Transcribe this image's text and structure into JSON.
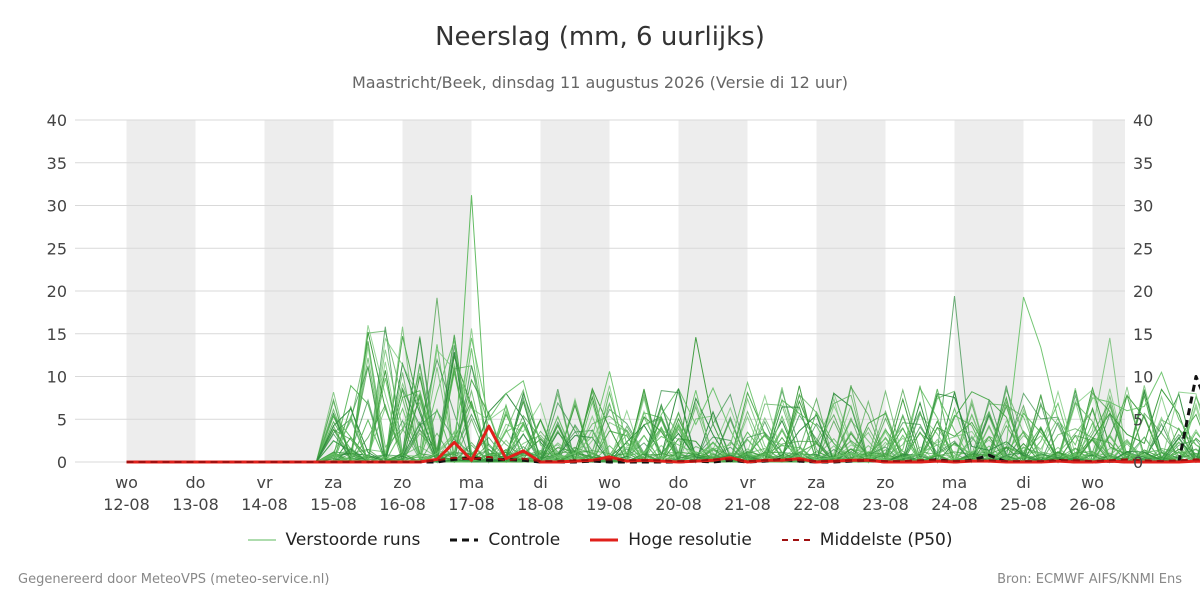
{
  "header": {
    "title": "Neerslag (mm, 6 uurlijks)",
    "subtitle": "Maastricht/Beek, dinsdag 11 augustus 2026 (Versie di 12 uur)"
  },
  "footer": {
    "generated_by": "Gegenereerd door MeteoVPS (meteo-service.nl)",
    "source": "Bron: ECMWF AIFS/KNMI Ens"
  },
  "legend": {
    "items": [
      {
        "label": "Verstoorde runs",
        "color": "#5cb85c",
        "style": "solid-thin"
      },
      {
        "label": "Controle",
        "color": "#111111",
        "style": "dashed"
      },
      {
        "label": "Hoge resolutie",
        "color": "#e0201b",
        "style": "solid-thick"
      },
      {
        "label": "Middelste (P50)",
        "color": "#a01010",
        "style": "dashed"
      }
    ]
  },
  "chart_data": {
    "type": "line",
    "title": "Neerslag (mm, 6 uurlijks)",
    "xlabel": "",
    "ylabel": "",
    "ylim": [
      0,
      40
    ],
    "yticks": [
      0,
      5,
      10,
      15,
      20,
      25,
      30,
      35,
      40
    ],
    "xlim": [
      -0.25,
      15
    ],
    "x_unit": "days from 12-08 00:00 (6-hourly steps)",
    "day_ticks": [
      {
        "day": "wo",
        "date": "12-08"
      },
      {
        "day": "do",
        "date": "13-08"
      },
      {
        "day": "vr",
        "date": "14-08"
      },
      {
        "day": "za",
        "date": "15-08"
      },
      {
        "day": "zo",
        "date": "16-08"
      },
      {
        "day": "ma",
        "date": "17-08"
      },
      {
        "day": "di",
        "date": "18-08"
      },
      {
        "day": "wo",
        "date": "19-08"
      },
      {
        "day": "do",
        "date": "20-08"
      },
      {
        "day": "vr",
        "date": "21-08"
      },
      {
        "day": "za",
        "date": "22-08"
      },
      {
        "day": "zo",
        "date": "23-08"
      },
      {
        "day": "ma",
        "date": "24-08"
      },
      {
        "day": "di",
        "date": "25-08"
      },
      {
        "day": "wo",
        "date": "26-08"
      }
    ],
    "shaded_days": [
      "13-08",
      "15-08",
      "17-08",
      "19-08",
      "21-08",
      "23-08",
      "25-08",
      "27-08"
    ],
    "grid": true,
    "legend_position": "bottom",
    "series": [
      {
        "name": "Controle",
        "color": "#111111",
        "style": "dashed",
        "values": [
          0,
          0,
          0,
          0,
          0,
          0,
          0,
          0,
          0,
          0,
          0,
          0,
          0,
          0,
          0,
          0,
          0,
          0,
          0,
          0.3,
          0.5,
          0.2,
          0.3,
          0.2,
          0,
          0,
          0,
          0.1,
          0,
          0,
          0,
          0,
          0,
          0.1,
          0,
          0.2,
          0,
          0.1,
          0.3,
          0.1,
          0,
          0,
          0.1,
          0.2,
          0,
          0,
          0,
          0.3,
          0,
          0.2,
          0.8,
          0,
          0,
          0,
          0.2,
          0,
          0,
          0.1,
          0,
          0,
          0,
          0,
          10,
          5,
          2,
          1.8,
          3
        ]
      },
      {
        "name": "Hoge resolutie",
        "color": "#e0201b",
        "style": "solid-thick",
        "values": [
          0,
          0,
          0,
          0,
          0,
          0,
          0,
          0,
          0,
          0,
          0,
          0,
          0,
          0,
          0,
          0,
          0,
          0,
          0.3,
          2.3,
          0.2,
          4.2,
          0.4,
          1.3,
          0,
          0,
          0.1,
          0.2,
          0.6,
          0.1,
          0.2,
          0.1,
          0,
          0.1,
          0.2,
          0.5,
          0,
          0.2,
          0.2,
          0.4,
          0,
          0.1,
          0.2,
          0.2,
          0,
          0,
          0,
          0.1,
          0,
          0.1,
          0.1,
          0,
          0,
          0,
          0.1,
          0,
          0,
          0.1,
          0,
          0,
          0,
          0,
          0.1,
          0,
          0,
          0.1,
          0
        ]
      },
      {
        "name": "Middelste (P50)",
        "color": "#a01010",
        "style": "dashed",
        "values": [
          0,
          0,
          0,
          0,
          0,
          0,
          0,
          0,
          0,
          0,
          0,
          0,
          0,
          0,
          0,
          0,
          0,
          0,
          0.2,
          0.5,
          0.3,
          0.6,
          0.2,
          0.4,
          0.1,
          0.1,
          0.2,
          0.2,
          0.3,
          0.2,
          0.2,
          0.2,
          0.1,
          0.1,
          0.3,
          0.3,
          0.1,
          0.2,
          0.3,
          0.2,
          0.1,
          0.1,
          0.2,
          0.2,
          0.1,
          0.1,
          0.2,
          0.2,
          0.1,
          0.1,
          0.2,
          0.1,
          0.1,
          0.1,
          0.2,
          0.2,
          0.1,
          0.2,
          0.3,
          0.2,
          0.1,
          0.2,
          0.3,
          0.2,
          0.2,
          0.2,
          0.2
        ]
      }
    ],
    "ensemble_highlights": [
      [
        0,
        0,
        0,
        0,
        0,
        0,
        0,
        0,
        0,
        0,
        0,
        0,
        0,
        0,
        0,
        0,
        0,
        0,
        1,
        3,
        14.5,
        5,
        8,
        9.5,
        2,
        0.5,
        1,
        3,
        10.6,
        2,
        1,
        3,
        2,
        1,
        1.5,
        2,
        9.3,
        3,
        2,
        1,
        0.3,
        0.5,
        1,
        0.5,
        0,
        0.5,
        1,
        2,
        2,
        1,
        3,
        2,
        19.3,
        13.4,
        5,
        2,
        7.5,
        7,
        6,
        6.5,
        10.5,
        5,
        2,
        1,
        2,
        4,
        1
      ]
    ]
  }
}
